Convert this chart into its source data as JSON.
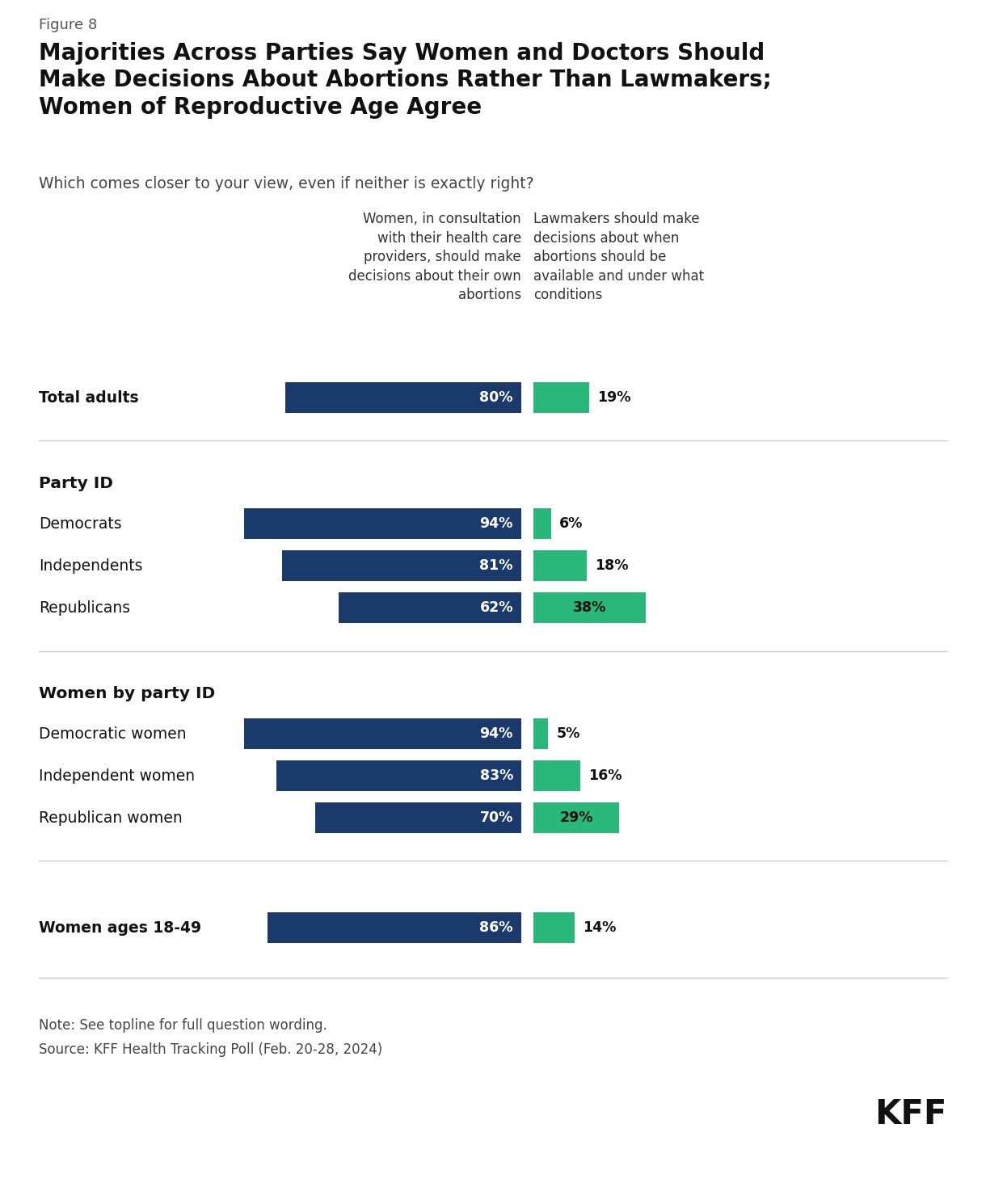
{
  "figure_label": "Figure 8",
  "title": "Majorities Across Parties Say Women and Doctors Should\nMake Decisions About Abortions Rather Than Lawmakers;\nWomen of Reproductive Age Agree",
  "subtitle": "Which comes closer to your view, even if neither is exactly right?",
  "col_header_left": "Women, in consultation\nwith their health care\nproviders, should make\ndecisions about their own\nabortions",
  "col_header_right": "Lawmakers should make\ndecisions about when\nabortions should be\navailable and under what\nconditions",
  "blue_values": {
    "Total adults": 80,
    "Democrats": 94,
    "Independents": 81,
    "Republicans": 62,
    "Democratic women": 94,
    "Independent women": 83,
    "Republican women": 70,
    "Women ages 18-49": 86
  },
  "green_values": {
    "Total adults": 19,
    "Democrats": 6,
    "Independents": 18,
    "Republicans": 38,
    "Democratic women": 5,
    "Independent women": 16,
    "Republican women": 29,
    "Women ages 18-49": 14
  },
  "blue_color": "#1a3a6b",
  "green_color": "#2ab87a",
  "note": "Note: See topline for full question wording.",
  "source": "Source: KFF Health Tracking Poll (Feb. 20-28, 2024)",
  "background_color": "#ffffff",
  "figsize": [
    12.2,
    14.9
  ],
  "dpi": 100
}
